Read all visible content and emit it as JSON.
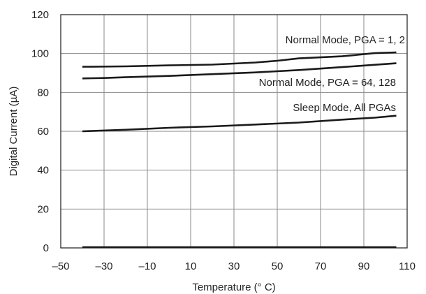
{
  "chart_data": {
    "type": "line",
    "title": "",
    "xlabel": "Temperature (° C)",
    "ylabel": "Digital Current (µA)",
    "xlim": [
      -50,
      110
    ],
    "ylim": [
      0,
      120
    ],
    "x_ticks": [
      -50,
      -30,
      -10,
      10,
      30,
      50,
      70,
      90,
      110
    ],
    "x_tick_labels": [
      "–50",
      "–30",
      "–10",
      "10",
      "30",
      "50",
      "70",
      "90",
      "110"
    ],
    "y_ticks": [
      0,
      20,
      40,
      60,
      80,
      100,
      120
    ],
    "y_tick_labels": [
      "0",
      "20",
      "40",
      "60",
      "80",
      "100",
      "120"
    ],
    "grid": true,
    "legend": "none",
    "series": [
      {
        "name": "Normal Mode, PGA = 1, 2",
        "color": "#1a1a1a",
        "x": [
          -40,
          -20,
          0,
          20,
          40,
          50,
          60,
          80,
          95,
          105
        ],
        "y": [
          93.2,
          93.4,
          93.9,
          94.3,
          95.4,
          96.3,
          97.5,
          98.6,
          100.2,
          100.6
        ]
      },
      {
        "name": "Normal Mode, PGA = 64, 128",
        "color": "#1a1a1a",
        "x": [
          -40,
          -30,
          -20,
          0,
          20,
          40,
          60,
          80,
          105
        ],
        "y": [
          87.2,
          87.4,
          87.8,
          88.5,
          89.4,
          90.3,
          91.5,
          93.0,
          95.0
        ]
      },
      {
        "name": "Sleep Mode, All PGAs",
        "color": "#1a1a1a",
        "x": [
          -40,
          -20,
          0,
          20,
          40,
          60,
          80,
          95,
          105
        ],
        "y": [
          60.0,
          60.8,
          61.8,
          62.5,
          63.5,
          64.5,
          66.0,
          67.0,
          68.0
        ]
      },
      {
        "name": "",
        "color": "#1a1a1a",
        "x": [
          -40,
          105
        ],
        "y": [
          0.4,
          0.4
        ]
      }
    ],
    "annotations": [
      {
        "text": "Normal Mode, PGA = 1, 2",
        "series": 0
      },
      {
        "text": "Normal Mode, PGA = 64, 128",
        "series": 1
      },
      {
        "text": "Sleep Mode, All PGAs",
        "series": 2
      }
    ]
  }
}
